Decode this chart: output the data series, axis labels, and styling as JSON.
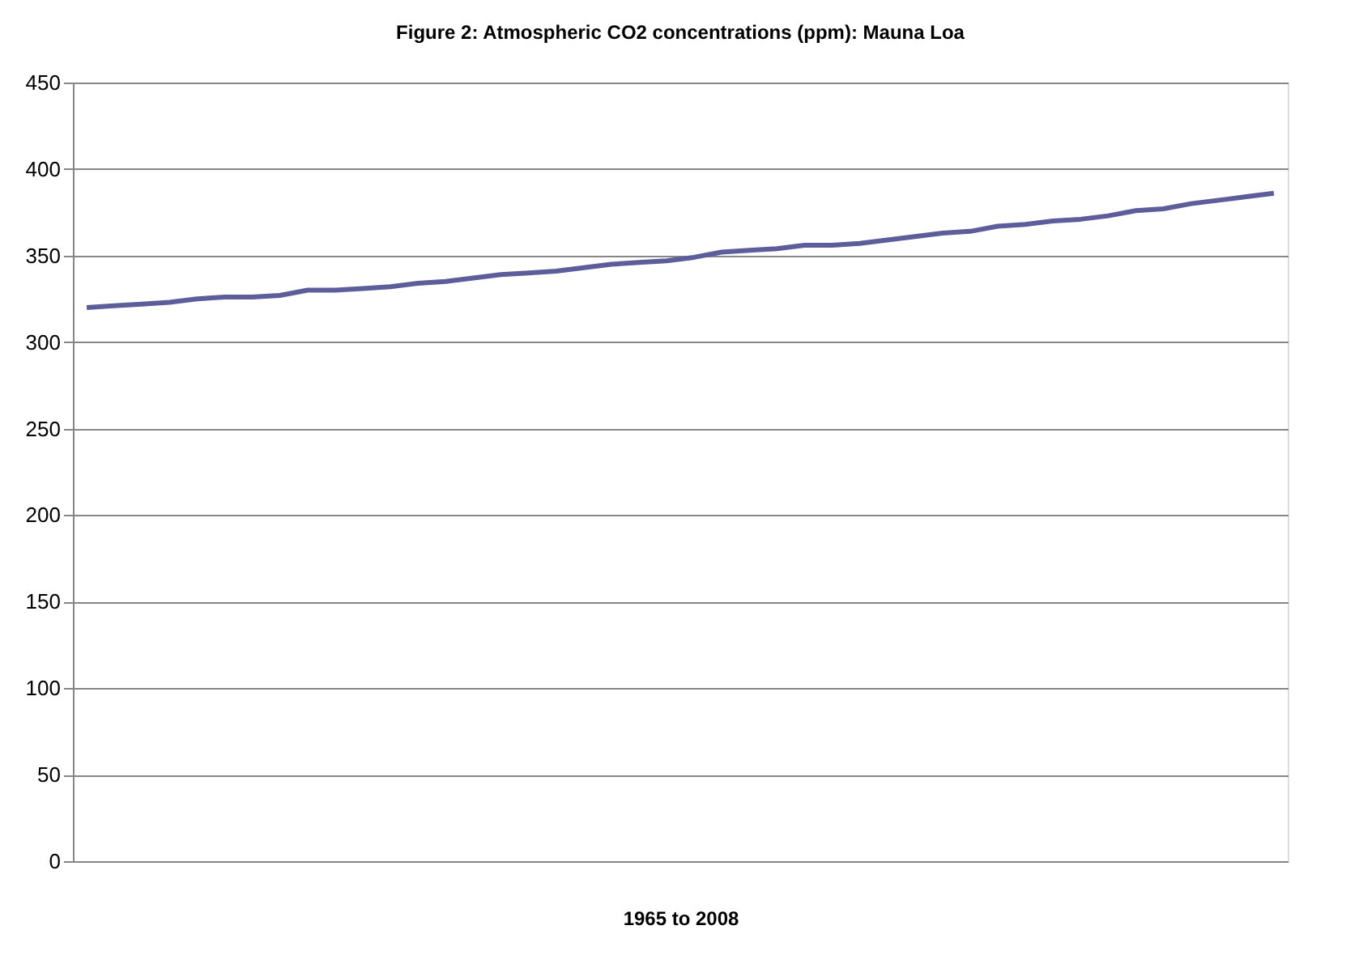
{
  "chart_data": {
    "type": "line",
    "title": "Figure 2: Atmospheric CO2 concentrations (ppm): Mauna Loa",
    "xlabel": "1965 to 2008",
    "categories": [
      null,
      null,
      null,
      null,
      null,
      null,
      null,
      null,
      null,
      null,
      null,
      null,
      null,
      null,
      null,
      null,
      null,
      null,
      null,
      null,
      null,
      null,
      null,
      null,
      null,
      null,
      null,
      null,
      null,
      null,
      null,
      null,
      null,
      null,
      null,
      null,
      null,
      null,
      null,
      null,
      null,
      null,
      null,
      null
    ],
    "series": [
      {
        "color": "#5e5d9c",
        "values": [
          320,
          321,
          322,
          323,
          325,
          326,
          326,
          327,
          330,
          330,
          331,
          332,
          334,
          335,
          337,
          339,
          340,
          341,
          343,
          345,
          346,
          347,
          349,
          352,
          353,
          354,
          356,
          356,
          357,
          359,
          361,
          363,
          364,
          367,
          368,
          370,
          371,
          373,
          376,
          377,
          380,
          382,
          384,
          386
        ]
      }
    ],
    "ylim": [
      0,
      450
    ],
    "yticks": [
      0,
      50,
      100,
      150,
      200,
      250,
      300,
      350,
      400,
      450
    ],
    "grid": "y"
  }
}
